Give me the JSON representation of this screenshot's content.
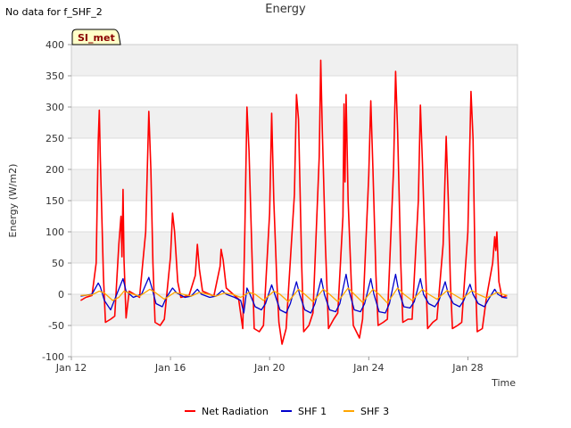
{
  "header": {
    "no_data": "No data for f_SHF_2",
    "title": "Energy"
  },
  "badge": "SI_met",
  "chart_data": {
    "type": "line",
    "title": "Energy",
    "xlabel": "Time",
    "ylabel": "Energy (W/m2)",
    "xlim": [
      "2023-01-12",
      "2023-01-30"
    ],
    "ylim": [
      -100,
      400
    ],
    "yticks": [
      -100,
      -50,
      0,
      50,
      100,
      150,
      200,
      250,
      300,
      350,
      400
    ],
    "xticks": [
      {
        "date": "2023-01-12",
        "label": "Jan 12"
      },
      {
        "date": "2023-01-16",
        "label": "Jan 16"
      },
      {
        "date": "2023-01-20",
        "label": "Jan 20"
      },
      {
        "date": "2023-01-24",
        "label": "Jan 24"
      },
      {
        "date": "2023-01-28",
        "label": "Jan 28"
      }
    ],
    "grid": true,
    "legend_position": "bottom",
    "series": [
      {
        "name": "Net Radiation",
        "color": "#ff0000",
        "points": [
          [
            "2023-01-12 09:00",
            -10
          ],
          [
            "2023-01-12 14:00",
            -5
          ],
          [
            "2023-01-12 20:00",
            -2
          ],
          [
            "2023-01-13 00:00",
            50
          ],
          [
            "2023-01-13 02:00",
            245
          ],
          [
            "2023-01-13 03:00",
            295
          ],
          [
            "2023-01-13 04:00",
            220
          ],
          [
            "2023-01-13 07:00",
            30
          ],
          [
            "2023-01-13 09:00",
            -45
          ],
          [
            "2023-01-13 14:00",
            -40
          ],
          [
            "2023-01-13 18:00",
            -35
          ],
          [
            "2023-01-13 22:00",
            80
          ],
          [
            "2023-01-14 00:00",
            125
          ],
          [
            "2023-01-14 01:00",
            60
          ],
          [
            "2023-01-14 02:00",
            168
          ],
          [
            "2023-01-14 03:00",
            55
          ],
          [
            "2023-01-14 05:00",
            -38
          ],
          [
            "2023-01-14 08:00",
            5
          ],
          [
            "2023-01-14 18:00",
            -5
          ],
          [
            "2023-01-15 00:00",
            100
          ],
          [
            "2023-01-15 03:00",
            293
          ],
          [
            "2023-01-15 05:00",
            200
          ],
          [
            "2023-01-15 07:00",
            50
          ],
          [
            "2023-01-15 09:00",
            -45
          ],
          [
            "2023-01-15 14:00",
            -50
          ],
          [
            "2023-01-15 18:00",
            -40
          ],
          [
            "2023-01-16 00:00",
            60
          ],
          [
            "2023-01-16 02:00",
            130
          ],
          [
            "2023-01-16 04:00",
            100
          ],
          [
            "2023-01-16 07:00",
            20
          ],
          [
            "2023-01-16 10:00",
            -5
          ],
          [
            "2023-01-16 18:00",
            -2
          ],
          [
            "2023-01-17 00:00",
            30
          ],
          [
            "2023-01-17 02:00",
            80
          ],
          [
            "2023-01-17 04:00",
            40
          ],
          [
            "2023-01-17 07:00",
            5
          ],
          [
            "2023-01-17 18:00",
            -3
          ],
          [
            "2023-01-18 00:00",
            45
          ],
          [
            "2023-01-18 01:00",
            72
          ],
          [
            "2023-01-18 03:00",
            55
          ],
          [
            "2023-01-18 06:00",
            10
          ],
          [
            "2023-01-18 18:00",
            -8
          ],
          [
            "2023-01-18 22:00",
            -55
          ],
          [
            "2023-01-19 00:00",
            100
          ],
          [
            "2023-01-19 02:00",
            300
          ],
          [
            "2023-01-19 04:00",
            230
          ],
          [
            "2023-01-19 07:00",
            60
          ],
          [
            "2023-01-19 09:00",
            -55
          ],
          [
            "2023-01-19 14:00",
            -60
          ],
          [
            "2023-01-19 18:00",
            -50
          ],
          [
            "2023-01-20 00:00",
            130
          ],
          [
            "2023-01-20 02:00",
            290
          ],
          [
            "2023-01-20 04:00",
            150
          ],
          [
            "2023-01-20 07:00",
            20
          ],
          [
            "2023-01-20 09:00",
            -45
          ],
          [
            "2023-01-20 12:00",
            -80
          ],
          [
            "2023-01-20 16:00",
            -55
          ],
          [
            "2023-01-21 00:00",
            160
          ],
          [
            "2023-01-21 02:00",
            320
          ],
          [
            "2023-01-21 04:00",
            280
          ],
          [
            "2023-01-21 07:00",
            50
          ],
          [
            "2023-01-21 09:00",
            -60
          ],
          [
            "2023-01-21 14:00",
            -50
          ],
          [
            "2023-01-21 18:00",
            -30
          ],
          [
            "2023-01-22 00:00",
            220
          ],
          [
            "2023-01-22 01:30",
            375
          ],
          [
            "2023-01-22 03:00",
            260
          ],
          [
            "2023-01-22 06:00",
            80
          ],
          [
            "2023-01-22 09:00",
            -55
          ],
          [
            "2023-01-22 14:00",
            -40
          ],
          [
            "2023-01-22 18:00",
            -30
          ],
          [
            "2023-01-22 23:00",
            125
          ],
          [
            "2023-01-23 00:00",
            305
          ],
          [
            "2023-01-23 01:00",
            180
          ],
          [
            "2023-01-23 02:00",
            320
          ],
          [
            "2023-01-23 04:00",
            150
          ],
          [
            "2023-01-23 07:00",
            20
          ],
          [
            "2023-01-23 09:00",
            -50
          ],
          [
            "2023-01-23 15:00",
            -70
          ],
          [
            "2023-01-23 18:00",
            -40
          ],
          [
            "2023-01-24 00:00",
            190
          ],
          [
            "2023-01-24 02:00",
            310
          ],
          [
            "2023-01-24 04:00",
            200
          ],
          [
            "2023-01-24 07:00",
            30
          ],
          [
            "2023-01-24 09:00",
            -50
          ],
          [
            "2023-01-24 14:00",
            -45
          ],
          [
            "2023-01-24 18:00",
            -40
          ],
          [
            "2023-01-25 00:00",
            200
          ],
          [
            "2023-01-25 02:00",
            357
          ],
          [
            "2023-01-25 04:00",
            260
          ],
          [
            "2023-01-25 07:00",
            50
          ],
          [
            "2023-01-25 09:00",
            -45
          ],
          [
            "2023-01-25 14:00",
            -40
          ],
          [
            "2023-01-25 18:00",
            -40
          ],
          [
            "2023-01-26 00:00",
            150
          ],
          [
            "2023-01-26 02:00",
            303
          ],
          [
            "2023-01-26 04:00",
            210
          ],
          [
            "2023-01-26 07:00",
            40
          ],
          [
            "2023-01-26 09:00",
            -55
          ],
          [
            "2023-01-26 14:00",
            -45
          ],
          [
            "2023-01-26 18:00",
            -40
          ],
          [
            "2023-01-27 00:00",
            80
          ],
          [
            "2023-01-27 03:00",
            253
          ],
          [
            "2023-01-27 05:00",
            150
          ],
          [
            "2023-01-27 07:00",
            20
          ],
          [
            "2023-01-27 09:00",
            -55
          ],
          [
            "2023-01-27 14:00",
            -50
          ],
          [
            "2023-01-27 18:00",
            -45
          ],
          [
            "2023-01-28 00:00",
            100
          ],
          [
            "2023-01-28 03:00",
            325
          ],
          [
            "2023-01-28 05:00",
            250
          ],
          [
            "2023-01-28 07:00",
            40
          ],
          [
            "2023-01-28 09:00",
            -60
          ],
          [
            "2023-01-28 14:00",
            -55
          ],
          [
            "2023-01-28 18:00",
            -5
          ],
          [
            "2023-01-29 00:00",
            50
          ],
          [
            "2023-01-29 02:00",
            92
          ],
          [
            "2023-01-29 03:00",
            70
          ],
          [
            "2023-01-29 04:00",
            100
          ],
          [
            "2023-01-29 06:00",
            20
          ],
          [
            "2023-01-29 09:00",
            -5
          ],
          [
            "2023-01-29 14:00",
            -2
          ]
        ]
      },
      {
        "name": "SHF 1",
        "color": "#0000cc",
        "points": [
          [
            "2023-01-12 09:00",
            -3
          ],
          [
            "2023-01-12 20:00",
            0
          ],
          [
            "2023-01-13 02:00",
            18
          ],
          [
            "2023-01-13 04:00",
            12
          ],
          [
            "2023-01-13 08:00",
            -10
          ],
          [
            "2023-01-13 14:00",
            -25
          ],
          [
            "2023-01-13 20:00",
            0
          ],
          [
            "2023-01-14 02:00",
            25
          ],
          [
            "2023-01-14 05:00",
            5
          ],
          [
            "2023-01-14 12:00",
            -5
          ],
          [
            "2023-01-14 20:00",
            0
          ],
          [
            "2023-01-15 03:00",
            27
          ],
          [
            "2023-01-15 06:00",
            10
          ],
          [
            "2023-01-15 10:00",
            -15
          ],
          [
            "2023-01-15 16:00",
            -20
          ],
          [
            "2023-01-15 20:00",
            -5
          ],
          [
            "2023-01-16 02:00",
            10
          ],
          [
            "2023-01-16 06:00",
            2
          ],
          [
            "2023-01-16 14:00",
            -5
          ],
          [
            "2023-01-16 20:00",
            -3
          ],
          [
            "2023-01-17 02:00",
            8
          ],
          [
            "2023-01-17 06:00",
            0
          ],
          [
            "2023-01-17 14:00",
            -5
          ],
          [
            "2023-01-17 20:00",
            -3
          ],
          [
            "2023-01-18 02:00",
            6
          ],
          [
            "2023-01-18 06:00",
            0
          ],
          [
            "2023-01-18 14:00",
            -5
          ],
          [
            "2023-01-18 20:00",
            -10
          ],
          [
            "2023-01-18 23:00",
            -30
          ],
          [
            "2023-01-19 02:00",
            10
          ],
          [
            "2023-01-19 05:00",
            0
          ],
          [
            "2023-01-19 10:00",
            -20
          ],
          [
            "2023-01-19 16:00",
            -25
          ],
          [
            "2023-01-19 20:00",
            -15
          ],
          [
            "2023-01-20 02:00",
            15
          ],
          [
            "2023-01-20 05:00",
            0
          ],
          [
            "2023-01-20 10:00",
            -25
          ],
          [
            "2023-01-20 16:00",
            -30
          ],
          [
            "2023-01-20 20:00",
            -15
          ],
          [
            "2023-01-21 02:00",
            20
          ],
          [
            "2023-01-21 05:00",
            0
          ],
          [
            "2023-01-21 10:00",
            -25
          ],
          [
            "2023-01-21 16:00",
            -30
          ],
          [
            "2023-01-21 20:00",
            -15
          ],
          [
            "2023-01-22 02:00",
            25
          ],
          [
            "2023-01-22 05:00",
            0
          ],
          [
            "2023-01-22 10:00",
            -25
          ],
          [
            "2023-01-22 16:00",
            -28
          ],
          [
            "2023-01-22 20:00",
            -15
          ],
          [
            "2023-01-23 02:00",
            32
          ],
          [
            "2023-01-23 05:00",
            5
          ],
          [
            "2023-01-23 10:00",
            -25
          ],
          [
            "2023-01-23 16:00",
            -28
          ],
          [
            "2023-01-23 20:00",
            -15
          ],
          [
            "2023-01-24 02:00",
            25
          ],
          [
            "2023-01-24 05:00",
            0
          ],
          [
            "2023-01-24 10:00",
            -28
          ],
          [
            "2023-01-24 16:00",
            -30
          ],
          [
            "2023-01-24 20:00",
            -15
          ],
          [
            "2023-01-25 02:00",
            32
          ],
          [
            "2023-01-25 05:00",
            5
          ],
          [
            "2023-01-25 10:00",
            -20
          ],
          [
            "2023-01-25 16:00",
            -22
          ],
          [
            "2023-01-25 20:00",
            -12
          ],
          [
            "2023-01-26 02:00",
            25
          ],
          [
            "2023-01-26 05:00",
            0
          ],
          [
            "2023-01-26 10:00",
            -15
          ],
          [
            "2023-01-26 16:00",
            -20
          ],
          [
            "2023-01-26 20:00",
            -10
          ],
          [
            "2023-01-27 02:00",
            20
          ],
          [
            "2023-01-27 05:00",
            0
          ],
          [
            "2023-01-27 10:00",
            -15
          ],
          [
            "2023-01-27 16:00",
            -20
          ],
          [
            "2023-01-27 20:00",
            -10
          ],
          [
            "2023-01-28 02:00",
            16
          ],
          [
            "2023-01-28 05:00",
            0
          ],
          [
            "2023-01-28 10:00",
            -15
          ],
          [
            "2023-01-28 16:00",
            -20
          ],
          [
            "2023-01-28 20:00",
            -8
          ],
          [
            "2023-01-29 02:00",
            8
          ],
          [
            "2023-01-29 05:00",
            0
          ],
          [
            "2023-01-29 10:00",
            -5
          ],
          [
            "2023-01-29 14:00",
            -6
          ]
        ]
      },
      {
        "name": "SHF 3",
        "color": "#ffa500",
        "points": [
          [
            "2023-01-12 09:00",
            -2
          ],
          [
            "2023-01-12 20:00",
            -1
          ],
          [
            "2023-01-13 03:00",
            5
          ],
          [
            "2023-01-13 08:00",
            2
          ],
          [
            "2023-01-13 16:00",
            -10
          ],
          [
            "2023-01-13 22:00",
            -5
          ],
          [
            "2023-01-14 03:00",
            5
          ],
          [
            "2023-01-14 08:00",
            2
          ],
          [
            "2023-01-14 18:00",
            -3
          ],
          [
            "2023-01-15 04:00",
            8
          ],
          [
            "2023-01-15 09:00",
            3
          ],
          [
            "2023-01-15 18:00",
            -8
          ],
          [
            "2023-01-16 04:00",
            3
          ],
          [
            "2023-01-16 12:00",
            0
          ],
          [
            "2023-01-16 20:00",
            -3
          ],
          [
            "2023-01-17 04:00",
            3
          ],
          [
            "2023-01-17 12:00",
            0
          ],
          [
            "2023-01-17 20:00",
            -3
          ],
          [
            "2023-01-18 04:00",
            2
          ],
          [
            "2023-01-18 12:00",
            0
          ],
          [
            "2023-01-18 20:00",
            -5
          ],
          [
            "2023-01-19 04:00",
            3
          ],
          [
            "2023-01-19 10:00",
            0
          ],
          [
            "2023-01-19 18:00",
            -10
          ],
          [
            "2023-01-20 04:00",
            5
          ],
          [
            "2023-01-20 10:00",
            0
          ],
          [
            "2023-01-20 18:00",
            -12
          ],
          [
            "2023-01-21 04:00",
            8
          ],
          [
            "2023-01-21 10:00",
            0
          ],
          [
            "2023-01-21 18:00",
            -12
          ],
          [
            "2023-01-22 04:00",
            8
          ],
          [
            "2023-01-22 10:00",
            0
          ],
          [
            "2023-01-22 18:00",
            -12
          ],
          [
            "2023-01-23 04:00",
            10
          ],
          [
            "2023-01-23 10:00",
            0
          ],
          [
            "2023-01-23 18:00",
            -13
          ],
          [
            "2023-01-24 04:00",
            8
          ],
          [
            "2023-01-24 10:00",
            0
          ],
          [
            "2023-01-24 18:00",
            -14
          ],
          [
            "2023-01-25 04:00",
            10
          ],
          [
            "2023-01-25 10:00",
            0
          ],
          [
            "2023-01-25 18:00",
            -10
          ],
          [
            "2023-01-26 04:00",
            8
          ],
          [
            "2023-01-26 10:00",
            0
          ],
          [
            "2023-01-26 18:00",
            -8
          ],
          [
            "2023-01-27 04:00",
            6
          ],
          [
            "2023-01-27 10:00",
            0
          ],
          [
            "2023-01-27 18:00",
            -8
          ],
          [
            "2023-01-28 04:00",
            6
          ],
          [
            "2023-01-28 10:00",
            0
          ],
          [
            "2023-01-28 18:00",
            -6
          ],
          [
            "2023-01-29 04:00",
            3
          ],
          [
            "2023-01-29 10:00",
            0
          ],
          [
            "2023-01-29 14:00",
            -2
          ]
        ]
      }
    ]
  }
}
